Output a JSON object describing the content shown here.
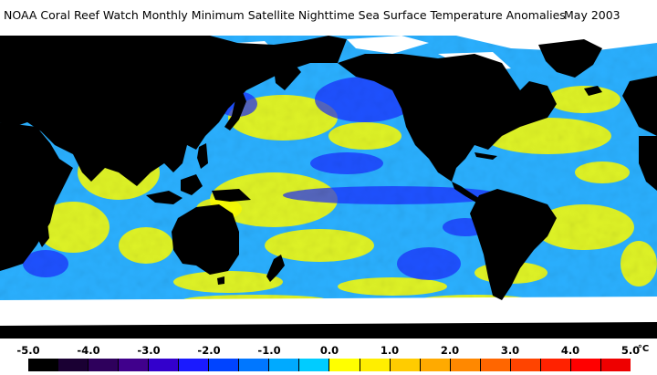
{
  "title": "NOAA Coral Reef Watch Monthly Minimum Satellite Nighttime Sea Surface Temperature Anomalies",
  "date": "May 2003",
  "legend": {
    "unit": "°C",
    "labels": [
      "-5.0",
      "-4.0",
      "-3.0",
      "-2.0",
      "-1.0",
      "0.0",
      "1.0",
      "2.0",
      "3.0",
      "4.0",
      "5.0"
    ],
    "colors": [
      "#000000",
      "#1a0033",
      "#2e005c",
      "#40008c",
      "#3300cc",
      "#1a1aff",
      "#0044ff",
      "#0077ff",
      "#00aaff",
      "#00ccff",
      "#ffff00",
      "#ffee00",
      "#ffcc00",
      "#ffaa00",
      "#ff8800",
      "#ff6600",
      "#ff4400",
      "#ff2200",
      "#ff0000",
      "#ee0000"
    ]
  },
  "map": {
    "ocean_base_color": "#2ab0ff",
    "warm_color": "#ffff00",
    "cool_color": "#1a2aff",
    "land_color": "#000000",
    "ice_color": "#ffffff"
  }
}
